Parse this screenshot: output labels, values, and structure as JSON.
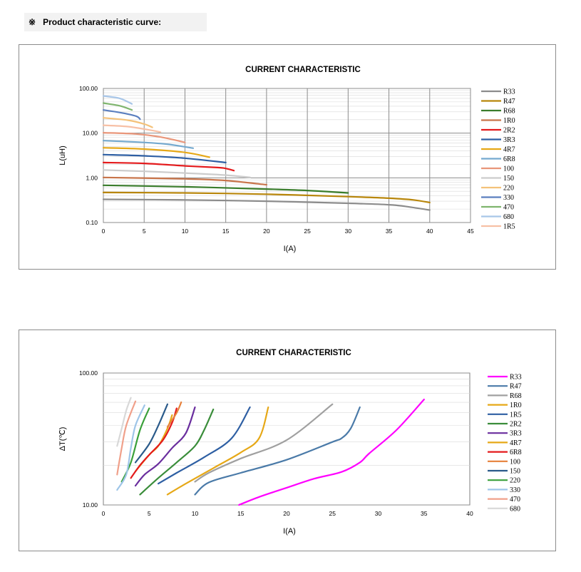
{
  "heading": {
    "mark": "※",
    "text": "Product characteristic curve:"
  },
  "chart_data": [
    {
      "type": "line",
      "title": "CURRENT CHARACTERISTIC",
      "xlabel": "I(A)",
      "ylabel": "L(uH)",
      "xlim": [
        0,
        45
      ],
      "ylim": [
        0.1,
        100
      ],
      "y_scale": "log",
      "grid": true,
      "legend_position": "right",
      "x_ticks": [
        "0",
        "5",
        "10",
        "15",
        "20",
        "25",
        "30",
        "35",
        "40",
        "45"
      ],
      "y_ticks": [
        "100.00",
        "10.00",
        "1.00",
        "0.10"
      ],
      "legend": [
        "R33",
        "R47",
        "R68",
        "1R0",
        "2R2",
        "3R3",
        "4R7",
        "6R8",
        "100",
        "150",
        "220",
        "330",
        "470",
        "680",
        "1R5"
      ],
      "series": [
        {
          "name": "R33",
          "color": "#8c8c8c",
          "points": [
            [
              0,
              0.33
            ],
            [
              10,
              0.32
            ],
            [
              20,
              0.3
            ],
            [
              30,
              0.27
            ],
            [
              35,
              0.25
            ],
            [
              37,
              0.23
            ],
            [
              40,
              0.19
            ]
          ]
        },
        {
          "name": "R47",
          "color": "#b8860b",
          "points": [
            [
              0,
              0.47
            ],
            [
              10,
              0.46
            ],
            [
              20,
              0.43
            ],
            [
              30,
              0.38
            ],
            [
              35,
              0.35
            ],
            [
              38,
              0.32
            ],
            [
              40,
              0.28
            ]
          ]
        },
        {
          "name": "R68",
          "color": "#3a7d2c",
          "points": [
            [
              0,
              0.68
            ],
            [
              10,
              0.63
            ],
            [
              20,
              0.56
            ],
            [
              25,
              0.52
            ],
            [
              30,
              0.46
            ]
          ]
        },
        {
          "name": "1R0",
          "color": "#c8744a",
          "points": [
            [
              0,
              1.02
            ],
            [
              10,
              0.95
            ],
            [
              15,
              0.87
            ],
            [
              20,
              0.7
            ]
          ]
        },
        {
          "name": "2R2",
          "color": "#e41a1c",
          "points": [
            [
              0,
              2.2
            ],
            [
              5,
              2.1
            ],
            [
              10,
              1.85
            ],
            [
              14,
              1.7
            ],
            [
              15,
              1.62
            ],
            [
              16,
              1.45
            ]
          ]
        },
        {
          "name": "3R3",
          "color": "#2e5fa3",
          "points": [
            [
              0,
              3.3
            ],
            [
              5,
              3.1
            ],
            [
              10,
              2.75
            ],
            [
              15,
              2.2
            ]
          ]
        },
        {
          "name": "4R7",
          "color": "#e6a817",
          "points": [
            [
              0,
              4.7
            ],
            [
              5,
              4.4
            ],
            [
              10,
              3.7
            ],
            [
              13,
              2.9
            ]
          ]
        },
        {
          "name": "6R8",
          "color": "#74a9cf",
          "points": [
            [
              0,
              6.8
            ],
            [
              5,
              6.2
            ],
            [
              8,
              5.6
            ],
            [
              11,
              4.6
            ]
          ]
        },
        {
          "name": "100",
          "color": "#e9967a",
          "points": [
            [
              0,
              10.2
            ],
            [
              4,
              9.6
            ],
            [
              7,
              8.2
            ],
            [
              10,
              6.2
            ]
          ]
        },
        {
          "name": "150",
          "color": "#cccccc",
          "points": [
            [
              0,
              1.5
            ],
            [
              5,
              1.4
            ],
            [
              10,
              1.28
            ],
            [
              15,
              1.15
            ],
            [
              18,
              1.02
            ]
          ]
        },
        {
          "name": "220",
          "color": "#f4c27a",
          "points": [
            [
              0,
              22
            ],
            [
              3,
              19.5
            ],
            [
              5,
              16
            ],
            [
              6,
              13.5
            ]
          ]
        },
        {
          "name": "330",
          "color": "#5b7fbf",
          "points": [
            [
              0,
              33
            ],
            [
              2,
              29
            ],
            [
              4,
              24
            ],
            [
              4.5,
              20.5
            ]
          ]
        },
        {
          "name": "470",
          "color": "#7fb56e",
          "points": [
            [
              0,
              47
            ],
            [
              2,
              41
            ],
            [
              3.5,
              33
            ]
          ]
        },
        {
          "name": "680",
          "color": "#a8c6e8",
          "points": [
            [
              0,
              68
            ],
            [
              2,
              60
            ],
            [
              3.5,
              45
            ]
          ]
        },
        {
          "name": "1R5",
          "color": "#f7c0a5",
          "points": [
            [
              0,
              15
            ],
            [
              3,
              14
            ],
            [
              6,
              11.5
            ],
            [
              7,
              10.5
            ]
          ]
        }
      ]
    },
    {
      "type": "line",
      "title": "CURRENT CHARACTERISTIC",
      "xlabel": "I(A)",
      "ylabel": "ΔT(℃)",
      "xlim": [
        0,
        40
      ],
      "ylim": [
        10,
        100
      ],
      "y_scale": "log",
      "grid": true,
      "legend_position": "right",
      "x_ticks": [
        "0",
        "5",
        "10",
        "15",
        "20",
        "25",
        "30",
        "35",
        "40"
      ],
      "y_ticks": [
        "100.00",
        "10.00"
      ],
      "legend": [
        "R33",
        "R47",
        "R68",
        "1R0",
        "1R5",
        "2R2",
        "3R3",
        "4R7",
        "6R8",
        "100",
        "150",
        "220",
        "330",
        "470",
        "680"
      ],
      "series": [
        {
          "name": "R33",
          "color": "#ff00ff",
          "points": [
            [
              14.8,
              10
            ],
            [
              17,
              11.5
            ],
            [
              20,
              13.5
            ],
            [
              23,
              15.8
            ],
            [
              26,
              17.8
            ],
            [
              28,
              21
            ],
            [
              29,
              24.5
            ],
            [
              32,
              37
            ],
            [
              35,
              63
            ]
          ]
        },
        {
          "name": "R47",
          "color": "#4a7aa8",
          "points": [
            [
              10,
              12
            ],
            [
              11.5,
              14.8
            ],
            [
              15,
              17.5
            ],
            [
              20,
              22
            ],
            [
              25,
              30
            ],
            [
              26,
              32
            ],
            [
              27,
              38
            ],
            [
              28,
              55
            ]
          ]
        },
        {
          "name": "R68",
          "color": "#a0a0a0",
          "points": [
            [
              10,
              15
            ],
            [
              11.5,
              17.5
            ],
            [
              15,
              22.5
            ],
            [
              20,
              31
            ],
            [
              25,
              58
            ]
          ]
        },
        {
          "name": "1R0",
          "color": "#e6a817",
          "points": [
            [
              7,
              12
            ],
            [
              9,
              14.5
            ],
            [
              12,
              19
            ],
            [
              15,
              25
            ],
            [
              17,
              32
            ],
            [
              18,
              55
            ]
          ]
        },
        {
          "name": "1R5",
          "color": "#2e5fa3",
          "points": [
            [
              6,
              14.5
            ],
            [
              8,
              17.5
            ],
            [
              11,
              23
            ],
            [
              14,
              32
            ],
            [
              16,
              55
            ]
          ]
        },
        {
          "name": "2R2",
          "color": "#3a8d3a",
          "points": [
            [
              4,
              12
            ],
            [
              6,
              16
            ],
            [
              8,
              21
            ],
            [
              10,
              28
            ],
            [
              11,
              37
            ],
            [
              12,
              53
            ]
          ]
        },
        {
          "name": "3R3",
          "color": "#6a2e9e",
          "points": [
            [
              3.5,
              14
            ],
            [
              4.5,
              17
            ],
            [
              6,
              20.5
            ],
            [
              7.5,
              27
            ],
            [
              9,
              35
            ],
            [
              10,
              55
            ]
          ]
        },
        {
          "name": "4R7",
          "color": "#e6a817",
          "points": [
            [
              3.5,
              18
            ],
            [
              5,
              24
            ],
            [
              6,
              28
            ],
            [
              7,
              38
            ],
            [
              7.5,
              48
            ]
          ]
        },
        {
          "name": "6R8",
          "color": "#e41a1c",
          "points": [
            [
              3,
              16
            ],
            [
              4,
              20
            ],
            [
              5,
              24
            ],
            [
              6.5,
              31
            ],
            [
              7.5,
              42
            ],
            [
              8,
              54
            ]
          ]
        },
        {
          "name": "100",
          "color": "#e6803a",
          "points": [
            [
              7,
              39
            ],
            [
              8,
              50
            ],
            [
              8.5,
              60
            ]
          ]
        },
        {
          "name": "150",
          "color": "#2a5a8a",
          "points": [
            [
              3.5,
              21
            ],
            [
              5,
              29
            ],
            [
              6,
              40
            ],
            [
              7,
              58
            ]
          ]
        },
        {
          "name": "220",
          "color": "#3aa03a",
          "points": [
            [
              2,
              15
            ],
            [
              3,
              21
            ],
            [
              4,
              37
            ],
            [
              5,
              54
            ]
          ]
        },
        {
          "name": "330",
          "color": "#9ec5e8",
          "points": [
            [
              1.5,
              13
            ],
            [
              2.5,
              17
            ],
            [
              3,
              27
            ],
            [
              3.5,
              40
            ],
            [
              4.5,
              57
            ]
          ]
        },
        {
          "name": "470",
          "color": "#f0a08a",
          "points": [
            [
              1.5,
              17
            ],
            [
              2,
              27
            ],
            [
              2.5,
              40
            ],
            [
              3.5,
              61
            ]
          ]
        },
        {
          "name": "680",
          "color": "#d8d8d8",
          "points": [
            [
              1.5,
              28
            ],
            [
              2,
              38
            ],
            [
              2.5,
              52
            ],
            [
              3,
              65
            ]
          ]
        }
      ]
    }
  ]
}
